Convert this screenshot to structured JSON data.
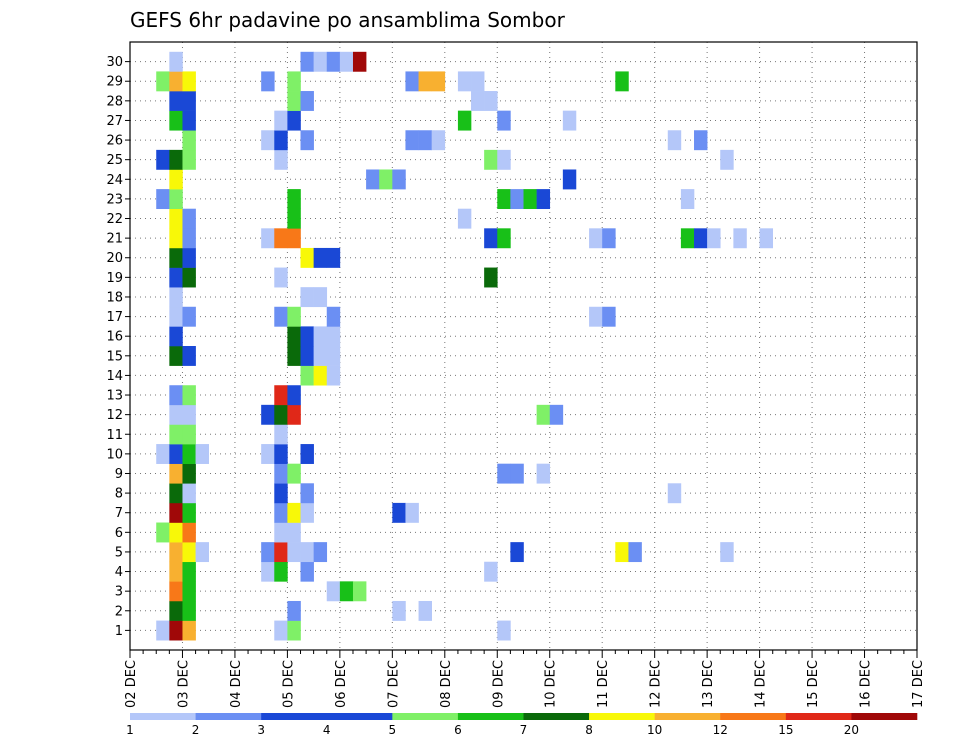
{
  "chart_data": {
    "type": "heatmap",
    "title": "GEFS 6hr padavine po ansamblima Sombor",
    "x_labels": [
      "02 DEC",
      "03 DEC",
      "04 DEC",
      "05 DEC",
      "06 DEC",
      "07 DEC",
      "08 DEC",
      "09 DEC",
      "10 DEC",
      "11 DEC",
      "12 DEC",
      "13 DEC",
      "14 DEC",
      "15 DEC",
      "16 DEC",
      "17 DEC"
    ],
    "x_step": "6hr",
    "y_labels": [
      "1",
      "2",
      "3",
      "4",
      "5",
      "6",
      "7",
      "8",
      "9",
      "10",
      "11",
      "12",
      "13",
      "14",
      "15",
      "16",
      "17",
      "18",
      "19",
      "20",
      "21",
      "22",
      "23",
      "24",
      "25",
      "26",
      "27",
      "28",
      "29",
      "30"
    ],
    "grid": true,
    "legend_position": "bottom",
    "colorbar": {
      "colors": [
        "#b4c7f9",
        "#6b8ff3",
        "#1a48d6",
        "#1a48d6",
        "#7ff067",
        "#18c018",
        "#0a6a0a",
        "#f8f808",
        "#f8b030",
        "#f87818",
        "#e02818",
        "#a00808"
      ],
      "labels": [
        {
          "label": "1",
          "at": 0
        },
        {
          "label": "2",
          "at": 1
        },
        {
          "label": "3",
          "at": 2
        },
        {
          "label": "4",
          "at": 3
        },
        {
          "label": "5",
          "at": 4
        },
        {
          "label": "6",
          "at": 5
        },
        {
          "label": "7",
          "at": 6
        },
        {
          "label": "8",
          "at": 7
        },
        {
          "label": "10",
          "at": 8
        },
        {
          "label": "12",
          "at": 9
        },
        {
          "label": "15",
          "at": 10
        },
        {
          "label": "20",
          "at": 11
        }
      ]
    },
    "cells_note": "each cell: member (1-30), step (6hr steps from 02 DEC 00Z), c = colour-class index (0..11)",
    "cells": [
      {
        "m": 1,
        "s": 2,
        "c": 0
      },
      {
        "m": 1,
        "s": 3,
        "c": 11
      },
      {
        "m": 1,
        "s": 4,
        "c": 8
      },
      {
        "m": 1,
        "s": 11,
        "c": 0
      },
      {
        "m": 1,
        "s": 12,
        "c": 4
      },
      {
        "m": 1,
        "s": 28,
        "c": 0
      },
      {
        "m": 2,
        "s": 3,
        "c": 6
      },
      {
        "m": 2,
        "s": 4,
        "c": 5
      },
      {
        "m": 2,
        "s": 12,
        "c": 1
      },
      {
        "m": 2,
        "s": 20,
        "c": 0
      },
      {
        "m": 2,
        "s": 22,
        "c": 0
      },
      {
        "m": 3,
        "s": 3,
        "c": 9
      },
      {
        "m": 3,
        "s": 4,
        "c": 5
      },
      {
        "m": 3,
        "s": 15,
        "c": 0
      },
      {
        "m": 3,
        "s": 16,
        "c": 5
      },
      {
        "m": 3,
        "s": 17,
        "c": 4
      },
      {
        "m": 4,
        "s": 3,
        "c": 8
      },
      {
        "m": 4,
        "s": 4,
        "c": 5
      },
      {
        "m": 4,
        "s": 10,
        "c": 0
      },
      {
        "m": 4,
        "s": 11,
        "c": 5
      },
      {
        "m": 4,
        "s": 13,
        "c": 1
      },
      {
        "m": 4,
        "s": 27,
        "c": 0
      },
      {
        "m": 5,
        "s": 3,
        "c": 8
      },
      {
        "m": 5,
        "s": 4,
        "c": 7
      },
      {
        "m": 5,
        "s": 5,
        "c": 0
      },
      {
        "m": 5,
        "s": 10,
        "c": 1
      },
      {
        "m": 5,
        "s": 11,
        "c": 10
      },
      {
        "m": 5,
        "s": 12,
        "c": 0
      },
      {
        "m": 5,
        "s": 13,
        "c": 0
      },
      {
        "m": 5,
        "s": 14,
        "c": 1
      },
      {
        "m": 5,
        "s": 29,
        "c": 2
      },
      {
        "m": 5,
        "s": 37,
        "c": 7
      },
      {
        "m": 5,
        "s": 38,
        "c": 1
      },
      {
        "m": 5,
        "s": 45,
        "c": 0
      },
      {
        "m": 6,
        "s": 2,
        "c": 4
      },
      {
        "m": 6,
        "s": 3,
        "c": 7
      },
      {
        "m": 6,
        "s": 4,
        "c": 9
      },
      {
        "m": 6,
        "s": 11,
        "c": 0
      },
      {
        "m": 6,
        "s": 12,
        "c": 0
      },
      {
        "m": 7,
        "s": 3,
        "c": 11
      },
      {
        "m": 7,
        "s": 4,
        "c": 5
      },
      {
        "m": 7,
        "s": 11,
        "c": 1
      },
      {
        "m": 7,
        "s": 12,
        "c": 7
      },
      {
        "m": 7,
        "s": 13,
        "c": 0
      },
      {
        "m": 7,
        "s": 20,
        "c": 2
      },
      {
        "m": 7,
        "s": 21,
        "c": 0
      },
      {
        "m": 8,
        "s": 3,
        "c": 6
      },
      {
        "m": 8,
        "s": 4,
        "c": 0
      },
      {
        "m": 8,
        "s": 11,
        "c": 2
      },
      {
        "m": 8,
        "s": 13,
        "c": 1
      },
      {
        "m": 8,
        "s": 41,
        "c": 0
      },
      {
        "m": 9,
        "s": 3,
        "c": 8
      },
      {
        "m": 9,
        "s": 4,
        "c": 6
      },
      {
        "m": 9,
        "s": 11,
        "c": 1
      },
      {
        "m": 9,
        "s": 12,
        "c": 4
      },
      {
        "m": 9,
        "s": 28,
        "c": 1
      },
      {
        "m": 9,
        "s": 29,
        "c": 1
      },
      {
        "m": 9,
        "s": 31,
        "c": 0
      },
      {
        "m": 10,
        "s": 2,
        "c": 0
      },
      {
        "m": 10,
        "s": 3,
        "c": 2
      },
      {
        "m": 10,
        "s": 4,
        "c": 5
      },
      {
        "m": 10,
        "s": 5,
        "c": 0
      },
      {
        "m": 10,
        "s": 10,
        "c": 0
      },
      {
        "m": 10,
        "s": 11,
        "c": 2
      },
      {
        "m": 10,
        "s": 13,
        "c": 2
      },
      {
        "m": 11,
        "s": 3,
        "c": 4
      },
      {
        "m": 11,
        "s": 4,
        "c": 4
      },
      {
        "m": 11,
        "s": 11,
        "c": 0
      },
      {
        "m": 12,
        "s": 3,
        "c": 0
      },
      {
        "m": 12,
        "s": 4,
        "c": 0
      },
      {
        "m": 12,
        "s": 10,
        "c": 2
      },
      {
        "m": 12,
        "s": 11,
        "c": 6
      },
      {
        "m": 12,
        "s": 12,
        "c": 10
      },
      {
        "m": 12,
        "s": 31,
        "c": 4
      },
      {
        "m": 12,
        "s": 32,
        "c": 1
      },
      {
        "m": 13,
        "s": 3,
        "c": 1
      },
      {
        "m": 13,
        "s": 4,
        "c": 4
      },
      {
        "m": 13,
        "s": 11,
        "c": 10
      },
      {
        "m": 13,
        "s": 12,
        "c": 2
      },
      {
        "m": 14,
        "s": 13,
        "c": 4
      },
      {
        "m": 14,
        "s": 14,
        "c": 7
      },
      {
        "m": 14,
        "s": 15,
        "c": 0
      },
      {
        "m": 15,
        "s": 3,
        "c": 6
      },
      {
        "m": 15,
        "s": 4,
        "c": 2
      },
      {
        "m": 15,
        "s": 12,
        "c": 6
      },
      {
        "m": 15,
        "s": 13,
        "c": 2
      },
      {
        "m": 15,
        "s": 14,
        "c": 0
      },
      {
        "m": 15,
        "s": 15,
        "c": 0
      },
      {
        "m": 16,
        "s": 3,
        "c": 2
      },
      {
        "m": 16,
        "s": 12,
        "c": 6
      },
      {
        "m": 16,
        "s": 13,
        "c": 2
      },
      {
        "m": 16,
        "s": 14,
        "c": 0
      },
      {
        "m": 16,
        "s": 15,
        "c": 0
      },
      {
        "m": 17,
        "s": 3,
        "c": 0
      },
      {
        "m": 17,
        "s": 4,
        "c": 1
      },
      {
        "m": 17,
        "s": 11,
        "c": 1
      },
      {
        "m": 17,
        "s": 12,
        "c": 4
      },
      {
        "m": 17,
        "s": 15,
        "c": 1
      },
      {
        "m": 17,
        "s": 35,
        "c": 0
      },
      {
        "m": 17,
        "s": 36,
        "c": 1
      },
      {
        "m": 18,
        "s": 3,
        "c": 0
      },
      {
        "m": 18,
        "s": 13,
        "c": 0
      },
      {
        "m": 18,
        "s": 14,
        "c": 0
      },
      {
        "m": 19,
        "s": 3,
        "c": 2
      },
      {
        "m": 19,
        "s": 4,
        "c": 6
      },
      {
        "m": 19,
        "s": 11,
        "c": 0
      },
      {
        "m": 19,
        "s": 27,
        "c": 6
      },
      {
        "m": 20,
        "s": 3,
        "c": 6
      },
      {
        "m": 20,
        "s": 4,
        "c": 2
      },
      {
        "m": 20,
        "s": 13,
        "c": 7
      },
      {
        "m": 20,
        "s": 14,
        "c": 2
      },
      {
        "m": 20,
        "s": 15,
        "c": 2
      },
      {
        "m": 21,
        "s": 3,
        "c": 7
      },
      {
        "m": 21,
        "s": 4,
        "c": 1
      },
      {
        "m": 21,
        "s": 10,
        "c": 0
      },
      {
        "m": 21,
        "s": 11,
        "c": 9
      },
      {
        "m": 21,
        "s": 12,
        "c": 9
      },
      {
        "m": 21,
        "s": 27,
        "c": 2
      },
      {
        "m": 21,
        "s": 28,
        "c": 5
      },
      {
        "m": 21,
        "s": 35,
        "c": 0
      },
      {
        "m": 21,
        "s": 36,
        "c": 1
      },
      {
        "m": 21,
        "s": 42,
        "c": 5
      },
      {
        "m": 21,
        "s": 43,
        "c": 2
      },
      {
        "m": 21,
        "s": 44,
        "c": 0
      },
      {
        "m": 21,
        "s": 46,
        "c": 0
      },
      {
        "m": 21,
        "s": 48,
        "c": 0
      },
      {
        "m": 22,
        "s": 3,
        "c": 7
      },
      {
        "m": 22,
        "s": 4,
        "c": 1
      },
      {
        "m": 22,
        "s": 12,
        "c": 5
      },
      {
        "m": 22,
        "s": 25,
        "c": 0
      },
      {
        "m": 23,
        "s": 2,
        "c": 1
      },
      {
        "m": 23,
        "s": 3,
        "c": 4
      },
      {
        "m": 23,
        "s": 12,
        "c": 5
      },
      {
        "m": 23,
        "s": 28,
        "c": 5
      },
      {
        "m": 23,
        "s": 29,
        "c": 1
      },
      {
        "m": 23,
        "s": 30,
        "c": 5
      },
      {
        "m": 23,
        "s": 31,
        "c": 2
      },
      {
        "m": 23,
        "s": 42,
        "c": 0
      },
      {
        "m": 24,
        "s": 3,
        "c": 7
      },
      {
        "m": 24,
        "s": 18,
        "c": 1
      },
      {
        "m": 24,
        "s": 19,
        "c": 4
      },
      {
        "m": 24,
        "s": 20,
        "c": 1
      },
      {
        "m": 24,
        "s": 33,
        "c": 2
      },
      {
        "m": 25,
        "s": 2,
        "c": 2
      },
      {
        "m": 25,
        "s": 3,
        "c": 6
      },
      {
        "m": 25,
        "s": 4,
        "c": 4
      },
      {
        "m": 25,
        "s": 11,
        "c": 0
      },
      {
        "m": 25,
        "s": 27,
        "c": 4
      },
      {
        "m": 25,
        "s": 28,
        "c": 0
      },
      {
        "m": 25,
        "s": 45,
        "c": 0
      },
      {
        "m": 26,
        "s": 4,
        "c": 4
      },
      {
        "m": 26,
        "s": 10,
        "c": 0
      },
      {
        "m": 26,
        "s": 11,
        "c": 2
      },
      {
        "m": 26,
        "s": 13,
        "c": 1
      },
      {
        "m": 26,
        "s": 21,
        "c": 1
      },
      {
        "m": 26,
        "s": 22,
        "c": 1
      },
      {
        "m": 26,
        "s": 23,
        "c": 0
      },
      {
        "m": 26,
        "s": 41,
        "c": 0
      },
      {
        "m": 26,
        "s": 43,
        "c": 1
      },
      {
        "m": 27,
        "s": 3,
        "c": 5
      },
      {
        "m": 27,
        "s": 4,
        "c": 2
      },
      {
        "m": 27,
        "s": 11,
        "c": 0
      },
      {
        "m": 27,
        "s": 12,
        "c": 2
      },
      {
        "m": 27,
        "s": 25,
        "c": 5
      },
      {
        "m": 27,
        "s": 28,
        "c": 1
      },
      {
        "m": 27,
        "s": 33,
        "c": 0
      },
      {
        "m": 28,
        "s": 3,
        "c": 2
      },
      {
        "m": 28,
        "s": 4,
        "c": 2
      },
      {
        "m": 28,
        "s": 12,
        "c": 4
      },
      {
        "m": 28,
        "s": 13,
        "c": 1
      },
      {
        "m": 28,
        "s": 26,
        "c": 0
      },
      {
        "m": 28,
        "s": 27,
        "c": 0
      },
      {
        "m": 29,
        "s": 2,
        "c": 4
      },
      {
        "m": 29,
        "s": 3,
        "c": 8
      },
      {
        "m": 29,
        "s": 4,
        "c": 7
      },
      {
        "m": 29,
        "s": 10,
        "c": 1
      },
      {
        "m": 29,
        "s": 12,
        "c": 4
      },
      {
        "m": 29,
        "s": 21,
        "c": 1
      },
      {
        "m": 29,
        "s": 22,
        "c": 8
      },
      {
        "m": 29,
        "s": 23,
        "c": 8
      },
      {
        "m": 29,
        "s": 25,
        "c": 0
      },
      {
        "m": 29,
        "s": 26,
        "c": 0
      },
      {
        "m": 29,
        "s": 37,
        "c": 5
      },
      {
        "m": 30,
        "s": 3,
        "c": 0
      },
      {
        "m": 30,
        "s": 13,
        "c": 1
      },
      {
        "m": 30,
        "s": 14,
        "c": 0
      },
      {
        "m": 30,
        "s": 15,
        "c": 1
      },
      {
        "m": 30,
        "s": 16,
        "c": 0
      },
      {
        "m": 30,
        "s": 17,
        "c": 11
      }
    ]
  }
}
